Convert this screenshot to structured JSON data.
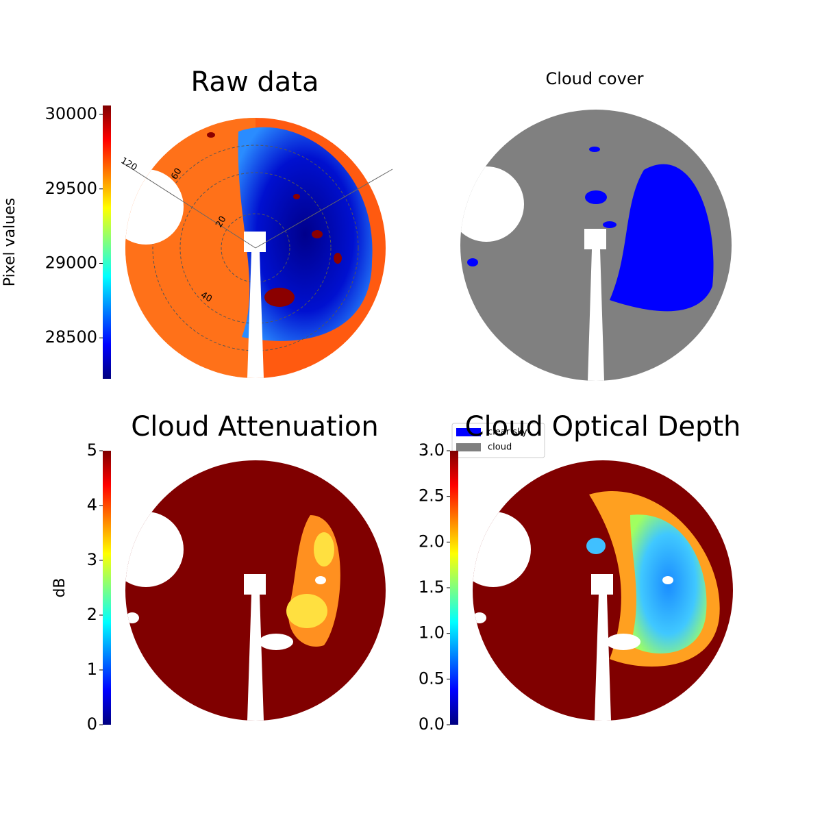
{
  "chart_data": [
    {
      "type": "image",
      "title": "Raw data",
      "colormap": "jet",
      "ylabel": "Pixel values",
      "ylim": [
        28225,
        30060
      ],
      "yticks": [
        28500,
        29000,
        29500,
        30000
      ],
      "polar_labels": [
        "120",
        "60",
        "20",
        "40"
      ]
    },
    {
      "type": "mask",
      "title": "Cloud cover",
      "series": [
        {
          "name": "clear sky",
          "color": "#0000ff"
        },
        {
          "name": "cloud",
          "color": "#808080"
        }
      ]
    },
    {
      "type": "image",
      "title": "Cloud Attenuation",
      "colormap": "jet",
      "ylabel": "dB",
      "ylim": [
        0,
        5
      ],
      "yticks": [
        0,
        1,
        2,
        3,
        4,
        5
      ]
    },
    {
      "type": "image",
      "title": "Cloud Optical Depth",
      "colormap": "jet",
      "ylim": [
        0,
        3
      ],
      "yticks": [
        {
          "value": 0,
          "label": "0.0"
        },
        {
          "value": 0.5,
          "label": "0.5"
        },
        {
          "value": 1,
          "label": "1.0"
        },
        {
          "value": 1.5,
          "label": "1.5"
        },
        {
          "value": 2,
          "label": "2.0"
        },
        {
          "value": 2.5,
          "label": "2.5"
        },
        {
          "value": 3,
          "label": "3.0"
        }
      ]
    }
  ]
}
